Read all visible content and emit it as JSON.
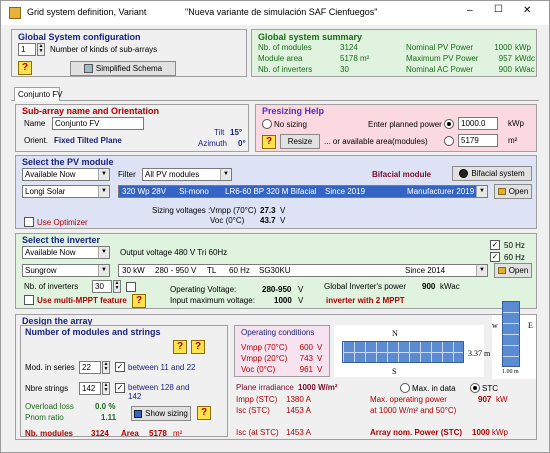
{
  "window": {
    "title_app": "Grid system definition, Variant",
    "title_variant": "\"Nueva variante de simulación SAF Cienfuegos\"",
    "controls": [
      "–",
      "☐",
      "✕"
    ]
  },
  "global_config": {
    "heading": "Global System configuration",
    "kinds_value": "1",
    "kinds_label": "Number of kinds of sub-arrays",
    "simplified_btn": "Simplified Schema"
  },
  "summary": {
    "heading": "Global system summary",
    "rows": [
      {
        "label": "Nb. of modules",
        "value": "3124",
        "label2": "Nominal PV Power",
        "value2": "1000",
        "unit2": "kWp"
      },
      {
        "label": "Module area",
        "value": "5178 m²",
        "label2": "Maximum PV Power",
        "value2": "957",
        "unit2": "kWdc"
      },
      {
        "label": "Nb. of inverters",
        "value": "30",
        "label2": "Nominal AC Power",
        "value2": "900",
        "unit2": "kWac"
      }
    ]
  },
  "tab": {
    "label": "Conjunto FV"
  },
  "subarray": {
    "heading": "Sub-array name and Orientation",
    "name_label": "Name",
    "name_value": "Conjunto FV",
    "orient_label": "Orient.",
    "orient_value": "Fixed Tilted Plane",
    "tilt_label": "Tilt",
    "tilt_value": "15°",
    "azimuth_label": "Azimuth",
    "azimuth_value": "0°"
  },
  "presizing": {
    "heading": "Presizing Help",
    "no_sizing": "No sizing",
    "enter_power": "Enter planned power",
    "power_value": "1000.0",
    "power_unit": "kWp",
    "resize_btn": "Resize",
    "or_area": "... or available area(modules)",
    "area_value": "5179",
    "area_unit": "m²"
  },
  "pv_module": {
    "heading": "Select the PV module",
    "availability": "Available Now",
    "filter_label": "Filter",
    "filter_value": "All PV modules",
    "bifacial_label": "Bifacial module",
    "bifacial_btn": "Bifacial system",
    "manufacturer": "Longi Solar",
    "model": [
      "320 Wp 28V",
      "Si-mono",
      "LR6-60 BP 320 M Bifacial",
      "Since 2019",
      "Manufacturer 2019"
    ],
    "open_btn": "Open",
    "sizing_voltages": "Sizing voltages :",
    "vmpp_label": "Vmpp (70°C)",
    "vmpp_value": "27.3",
    "voc_label": "Voc (0°C)",
    "voc_value": "43.7",
    "volt_unit": "V",
    "use_optimizer": "Use Optimizer"
  },
  "inverter": {
    "heading": "Select the inverter",
    "availability": "Available Now",
    "output_voltage": "Output voltage 480 V Tri 60Hz",
    "hz50": "50 Hz",
    "hz60": "60 Hz",
    "manufacturer": "Sungrow",
    "model": [
      "30 kW",
      "280 - 950 V",
      "TL",
      "60 Hz",
      "SG30KU",
      "Since 2014"
    ],
    "open_btn": "Open",
    "nb_label": "Nb. of inverters",
    "nb_value": "30",
    "op_voltage_label": "Operating Voltage:",
    "op_voltage_value": "280-950",
    "op_voltage_unit": "V",
    "max_input_label": "Input maximum voltage:",
    "max_input_value": "1000",
    "max_input_unit": "V",
    "global_power_label": "Global Inverter's power",
    "global_power_value": "900",
    "global_power_unit": "kWac",
    "multi_mppt": "Use multi-MPPT feature",
    "mppt_text": "inverter with 2 MPPT"
  },
  "design": {
    "heading": "Design the array",
    "sub_heading": "Number of modules and strings",
    "series_label": "Mod. in series",
    "series_value": "22",
    "series_between": "between 11 and 22",
    "strings_label": "Nbre strings",
    "strings_value": "142",
    "strings_between": "between 128 and",
    "strings_between2": "142",
    "overload_label": "Overload loss",
    "overload_value": "0.0 %",
    "pnom_label": "Pnom ratio",
    "pnom_value": "1.11",
    "show_sizing_btn": "Show sizing",
    "nb_modules_label": "Nb. modules",
    "nb_modules_value": "3124",
    "area_label": "Area",
    "area_value": "5178",
    "area_unit": "m²",
    "op_cond_heading": "Operating conditions",
    "op_cond": [
      {
        "label": "Vmpp (70°C)",
        "value": "600",
        "unit": "V"
      },
      {
        "label": "Vmpp (20°C)",
        "value": "743",
        "unit": "V"
      },
      {
        "label": "Voc (0°C)",
        "value": "961",
        "unit": "V"
      }
    ],
    "plane_irr_label": "Plane irradiance",
    "plane_irr_value": "1000 W/m²",
    "max_in_data": "Max. in data",
    "stc": "STC",
    "impp_label": "Impp (STC)",
    "impp_value": "1380 A",
    "isc_label": "Isc (STC)",
    "isc_value": "1453 A",
    "max_op_power_label": "Max. operating power",
    "max_op_power_sub": "at 1000 W/m² and 50°C)",
    "max_op_power_value": "907",
    "max_op_power_unit": "kW",
    "isc_at_stc_label": "Isc (at STC)",
    "isc_at_stc_value": "1453 A",
    "nom_power_label": "Array nom. Power (STC)",
    "nom_power_value": "1000",
    "nom_power_unit": "kWp",
    "diagram_n": "N",
    "diagram_s": "S",
    "diagram_w": "w",
    "diagram_e": "E",
    "diagram_dim": "3.37 m",
    "diagram_dim2": "1.00 m"
  },
  "colors": {
    "green_bg": "#dff3df",
    "pink_bg": "#fbd9e1",
    "blue_bg": "#dde3f5",
    "module_blue": "#5b8bd0"
  }
}
